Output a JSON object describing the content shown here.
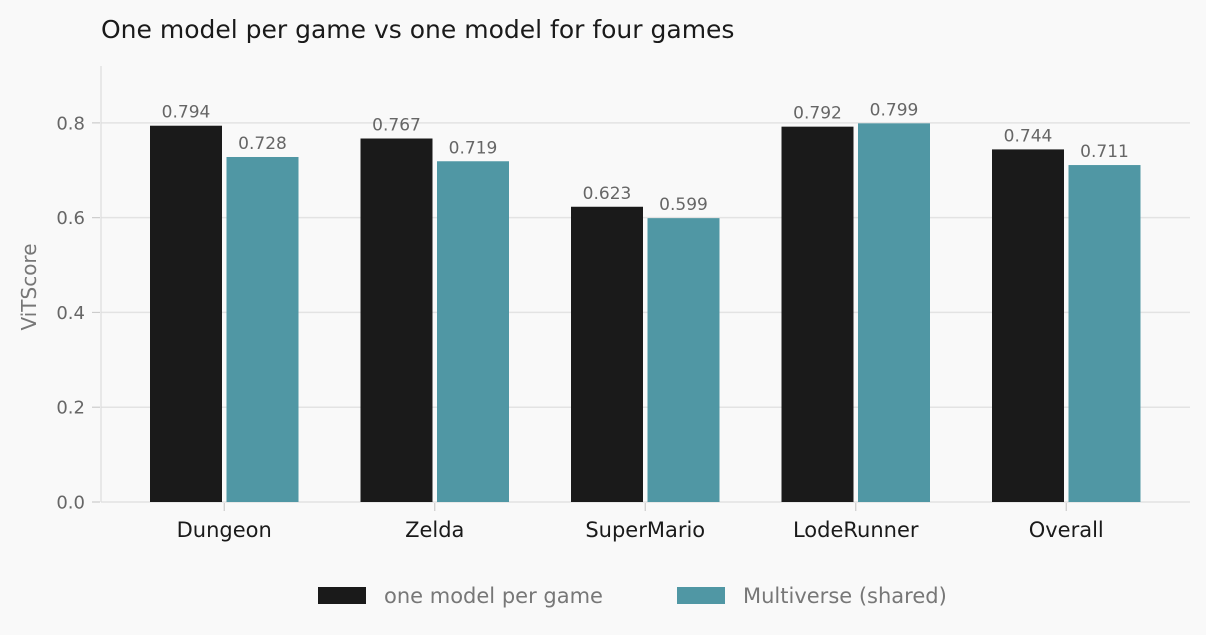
{
  "chart_data": {
    "type": "bar",
    "title": "One model per game  vs  one model for four games",
    "xlabel": "",
    "ylabel": "ViTScore",
    "categories": [
      "Dungeon",
      "Zelda",
      "SuperMario",
      "LodeRunner",
      "Overall"
    ],
    "series": [
      {
        "name": "one model per game",
        "color": "#1a1a1a",
        "values": [
          0.794,
          0.767,
          0.623,
          0.792,
          0.744
        ],
        "labels": [
          "0.794",
          "0.767",
          "0.623",
          "0.792",
          "0.744"
        ]
      },
      {
        "name": "Multiverse (shared)",
        "color": "#5097a4",
        "values": [
          0.728,
          0.719,
          0.599,
          0.799,
          0.711
        ],
        "labels": [
          "0.728",
          "0.719",
          "0.599",
          "0.799",
          "0.711"
        ]
      }
    ],
    "ylim": [
      0,
      0.92
    ],
    "yticks": [
      0.0,
      0.2,
      0.4,
      0.6,
      0.8
    ],
    "ytick_labels": [
      "0.0",
      "0.2",
      "0.4",
      "0.6",
      "0.8"
    ],
    "grid": true,
    "grid_color": "#e3e3e3",
    "legend_position": "bottom-center"
  }
}
